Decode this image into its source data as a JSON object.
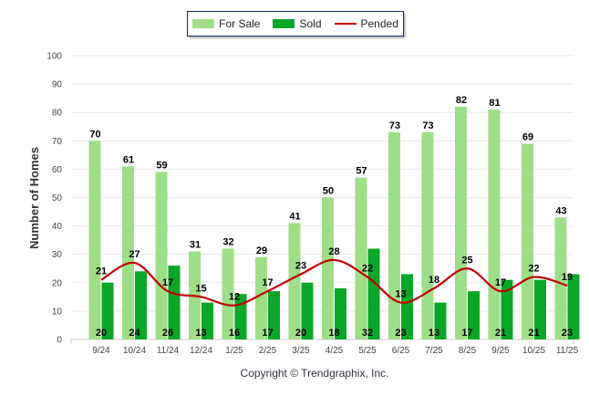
{
  "chart_data": {
    "type": "bar",
    "categories": [
      "9/24",
      "10/24",
      "11/24",
      "12/24",
      "1/25",
      "2/25",
      "3/25",
      "4/25",
      "5/25",
      "6/25",
      "7/25",
      "8/25",
      "9/25",
      "10/25",
      "11/25"
    ],
    "series": [
      {
        "name": "For Sale",
        "type": "bar",
        "color": "#9ede88",
        "values": [
          70,
          61,
          59,
          31,
          32,
          29,
          41,
          50,
          57,
          73,
          73,
          82,
          81,
          69,
          43
        ]
      },
      {
        "name": "Sold",
        "type": "bar",
        "color": "#0aa628",
        "values": [
          20,
          24,
          26,
          13,
          16,
          17,
          20,
          18,
          32,
          23,
          13,
          17,
          21,
          21,
          23
        ]
      },
      {
        "name": "Pended",
        "type": "line",
        "color": "#c00000",
        "values": [
          21,
          27,
          17,
          15,
          12,
          17,
          23,
          28,
          22,
          13,
          18,
          25,
          17,
          22,
          19
        ]
      }
    ],
    "ylabel": "Number of Homes",
    "xlabel": "",
    "ylim": [
      0,
      100
    ],
    "yticks": [
      0,
      10,
      20,
      30,
      40,
      50,
      60,
      70,
      80,
      90,
      100
    ],
    "grid": true,
    "legend": "top-center"
  },
  "copyright": "Copyright © Trendgraphix, Inc."
}
